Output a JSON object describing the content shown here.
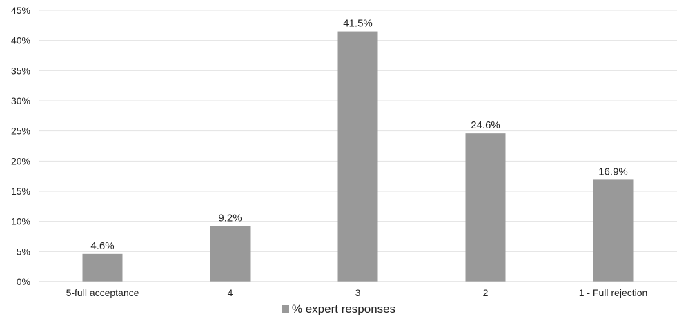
{
  "chart_data": {
    "type": "bar",
    "title": "",
    "xlabel": "",
    "ylabel": "",
    "categories": [
      "5-full acceptance",
      "4",
      "3",
      "2",
      "1 - Full rejection"
    ],
    "series": [
      {
        "name": "% expert responses",
        "values": [
          4.6,
          9.2,
          41.5,
          24.6,
          16.9
        ],
        "data_labels": [
          "4.6%",
          "9.2%",
          "41.5%",
          "24.6%",
          "16.9%"
        ],
        "color": "#999999"
      }
    ],
    "ylim": [
      0,
      45
    ],
    "yticks": [
      0,
      5,
      10,
      15,
      20,
      25,
      30,
      35,
      40,
      45
    ],
    "ytick_labels": [
      "0%",
      "5%",
      "10%",
      "15%",
      "20%",
      "25%",
      "30%",
      "35%",
      "40%",
      "45%"
    ],
    "grid": true,
    "gridline_color": "#e3e3e3",
    "legend": {
      "position": "bottom",
      "entries": [
        "% expert responses"
      ]
    }
  }
}
